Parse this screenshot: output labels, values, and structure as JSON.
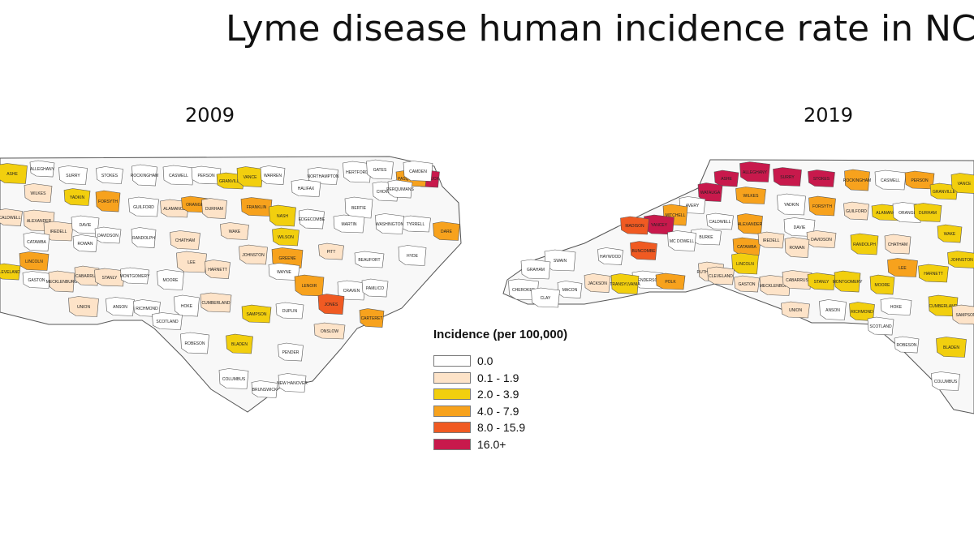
{
  "title": "Lyme disease human incidence rate in NC",
  "years": {
    "left": "2009",
    "right": "2019"
  },
  "legend": {
    "title": "Incidence (per 100,000)",
    "classes": [
      {
        "label": "0.0",
        "color": "#ffffff"
      },
      {
        "label": "0.1 - 1.9",
        "color": "#fde3c8"
      },
      {
        "label": "2.0 - 3.9",
        "color": "#f2cf0e"
      },
      {
        "label": "4.0 - 7.9",
        "color": "#f7a21d"
      },
      {
        "label": "8.0 - 15.9",
        "color": "#f05a22"
      },
      {
        "label": "16.0+",
        "color": "#c8194c"
      }
    ]
  },
  "map2009": {
    "counties": [
      {
        "name": "ALLEGHANY",
        "class": 0
      },
      {
        "name": "ASHE",
        "class": 2
      },
      {
        "name": "SURRY",
        "class": 0
      },
      {
        "name": "STOKES",
        "class": 0
      },
      {
        "name": "ROCKINGHAM",
        "class": 0
      },
      {
        "name": "CASWELL",
        "class": 0
      },
      {
        "name": "PERSON",
        "class": 0
      },
      {
        "name": "GRANVILLE",
        "class": 2
      },
      {
        "name": "VANCE",
        "class": 2
      },
      {
        "name": "WARREN",
        "class": 0
      },
      {
        "name": "NORTHAMPTON",
        "class": 0
      },
      {
        "name": "HERTFORD",
        "class": 0
      },
      {
        "name": "GATES",
        "class": 0
      },
      {
        "name": "CURRITUCK",
        "class": 5
      },
      {
        "name": "PASQUOTANK",
        "class": 3
      },
      {
        "name": "CAMDEN",
        "class": 0
      },
      {
        "name": "WILKES",
        "class": 1
      },
      {
        "name": "YADKIN",
        "class": 2
      },
      {
        "name": "FORSYTH",
        "class": 3
      },
      {
        "name": "GUILFORD",
        "class": 0
      },
      {
        "name": "ALAMANCE",
        "class": 1
      },
      {
        "name": "ORANGE",
        "class": 3
      },
      {
        "name": "DURHAM",
        "class": 1
      },
      {
        "name": "FRANKLIN",
        "class": 3
      },
      {
        "name": "HALIFAX",
        "class": 0
      },
      {
        "name": "BERTIE",
        "class": 0
      },
      {
        "name": "CHOWAN",
        "class": 0
      },
      {
        "name": "PERQUIMANS",
        "class": 0
      },
      {
        "name": "TYRRELL",
        "class": 0
      },
      {
        "name": "WASHINGTON",
        "class": 0
      },
      {
        "name": "DARE",
        "class": 3
      },
      {
        "name": "CALDWELL",
        "class": 1
      },
      {
        "name": "ALEXANDER",
        "class": 1
      },
      {
        "name": "IREDELL",
        "class": 1
      },
      {
        "name": "DAVIE",
        "class": 0
      },
      {
        "name": "DAVIDSON",
        "class": 0
      },
      {
        "name": "RANDOLPH",
        "class": 0
      },
      {
        "name": "CHATHAM",
        "class": 1
      },
      {
        "name": "WAKE",
        "class": 1
      },
      {
        "name": "NASH",
        "class": 2
      },
      {
        "name": "EDGECOMBE",
        "class": 0
      },
      {
        "name": "MARTIN",
        "class": 0
      },
      {
        "name": "BEAUFORT",
        "class": 0
      },
      {
        "name": "HYDE",
        "class": 0
      },
      {
        "name": "CATAWBA",
        "class": 0
      },
      {
        "name": "ROWAN",
        "class": 0
      },
      {
        "name": "LEE",
        "class": 1
      },
      {
        "name": "JOHNSTON",
        "class": 1
      },
      {
        "name": "WILSON",
        "class": 2
      },
      {
        "name": "PITT",
        "class": 1
      },
      {
        "name": "GREENE",
        "class": 3
      },
      {
        "name": "LINCOLN",
        "class": 3
      },
      {
        "name": "GASTON",
        "class": 0
      },
      {
        "name": "MECKLENBURG",
        "class": 1
      },
      {
        "name": "CABARRUS",
        "class": 1
      },
      {
        "name": "STANLY",
        "class": 1
      },
      {
        "name": "MONTGOMERY",
        "class": 0
      },
      {
        "name": "MOORE",
        "class": 0
      },
      {
        "name": "HARNETT",
        "class": 1
      },
      {
        "name": "WAYNE",
        "class": 0
      },
      {
        "name": "LENOIR",
        "class": 3
      },
      {
        "name": "CRAVEN",
        "class": 0
      },
      {
        "name": "PAMLICO",
        "class": 0
      },
      {
        "name": "CLEVELAND",
        "class": 2
      },
      {
        "name": "UNION",
        "class": 1
      },
      {
        "name": "ANSON",
        "class": 0
      },
      {
        "name": "RICHMOND",
        "class": 0
      },
      {
        "name": "HOKE",
        "class": 0
      },
      {
        "name": "CUMBERLAND",
        "class": 1
      },
      {
        "name": "SAMPSON",
        "class": 2
      },
      {
        "name": "DUPLIN",
        "class": 0
      },
      {
        "name": "JONES",
        "class": 4
      },
      {
        "name": "CARTERET",
        "class": 3
      },
      {
        "name": "SCOTLAND",
        "class": 0
      },
      {
        "name": "ROBESON",
        "class": 0
      },
      {
        "name": "BLADEN",
        "class": 2
      },
      {
        "name": "PENDER",
        "class": 0
      },
      {
        "name": "ONSLOW",
        "class": 1
      },
      {
        "name": "COLUMBUS",
        "class": 0
      },
      {
        "name": "NEW HANOVER",
        "class": 0
      },
      {
        "name": "BRUNSWICK",
        "class": 0
      }
    ]
  },
  "map2019": {
    "counties": [
      {
        "name": "ASHE",
        "class": 5
      },
      {
        "name": "ALLEGHANY",
        "class": 5
      },
      {
        "name": "SURRY",
        "class": 5
      },
      {
        "name": "STOKES",
        "class": 5
      },
      {
        "name": "ROCKINGHAM",
        "class": 3
      },
      {
        "name": "CASWELL",
        "class": 0
      },
      {
        "name": "PERSON",
        "class": 3
      },
      {
        "name": "GRANVILLE",
        "class": 2
      },
      {
        "name": "VANCE",
        "class": 2
      },
      {
        "name": "WATAUGA",
        "class": 5
      },
      {
        "name": "WILKES",
        "class": 3
      },
      {
        "name": "YADKIN",
        "class": 0
      },
      {
        "name": "FORSYTH",
        "class": 3
      },
      {
        "name": "GUILFORD",
        "class": 1
      },
      {
        "name": "ALAMANCE",
        "class": 2
      },
      {
        "name": "ORANGE",
        "class": 0
      },
      {
        "name": "DURHAM",
        "class": 2
      },
      {
        "name": "AVERY",
        "class": 0
      },
      {
        "name": "MITCHELL",
        "class": 3
      },
      {
        "name": "YANCEY",
        "class": 5
      },
      {
        "name": "MADISON",
        "class": 4
      },
      {
        "name": "CALDWELL",
        "class": 0
      },
      {
        "name": "ALEXANDER",
        "class": 3
      },
      {
        "name": "DAVIE",
        "class": 0
      },
      {
        "name": "DAVIDSON",
        "class": 1
      },
      {
        "name": "RANDOLPH",
        "class": 2
      },
      {
        "name": "CHATHAM",
        "class": 1
      },
      {
        "name": "WAKE",
        "class": 2
      },
      {
        "name": "BURKE",
        "class": 0
      },
      {
        "name": "MC DOWELL",
        "class": 0
      },
      {
        "name": "BUNCOMBE",
        "class": 4
      },
      {
        "name": "HAYWOOD",
        "class": 0
      },
      {
        "name": "SWAIN",
        "class": 0
      },
      {
        "name": "GRAHAM",
        "class": 0
      },
      {
        "name": "CATAWBA",
        "class": 3
      },
      {
        "name": "IREDELL",
        "class": 1
      },
      {
        "name": "ROWAN",
        "class": 1
      },
      {
        "name": "LEE",
        "class": 3
      },
      {
        "name": "JOHNSTON",
        "class": 2
      },
      {
        "name": "LINCOLN",
        "class": 2
      },
      {
        "name": "RUTHERFORD",
        "class": 1
      },
      {
        "name": "HENDERSON",
        "class": 0
      },
      {
        "name": "POLK",
        "class": 3
      },
      {
        "name": "TRANSYLVANIA",
        "class": 2
      },
      {
        "name": "JACKSON",
        "class": 1
      },
      {
        "name": "MACON",
        "class": 0
      },
      {
        "name": "CHEROKEE",
        "class": 0
      },
      {
        "name": "CLAY",
        "class": 0
      },
      {
        "name": "CLEVELAND",
        "class": 1
      },
      {
        "name": "GASTON",
        "class": 1
      },
      {
        "name": "MECKLENBURG",
        "class": 1
      },
      {
        "name": "CABARRUS",
        "class": 1
      },
      {
        "name": "STANLY",
        "class": 2
      },
      {
        "name": "MONTGOMERY",
        "class": 2
      },
      {
        "name": "MOORE",
        "class": 2
      },
      {
        "name": "HARNETT",
        "class": 2
      },
      {
        "name": "UNION",
        "class": 1
      },
      {
        "name": "ANSON",
        "class": 0
      },
      {
        "name": "RICHMOND",
        "class": 2
      },
      {
        "name": "HOKE",
        "class": 0
      },
      {
        "name": "CUMBERLAND",
        "class": 2
      },
      {
        "name": "SAMPSON",
        "class": 1
      },
      {
        "name": "SCOTLAND",
        "class": 0
      },
      {
        "name": "ROBESON",
        "class": 0
      },
      {
        "name": "BLADEN",
        "class": 2
      },
      {
        "name": "COLUMBUS",
        "class": 0
      }
    ]
  }
}
